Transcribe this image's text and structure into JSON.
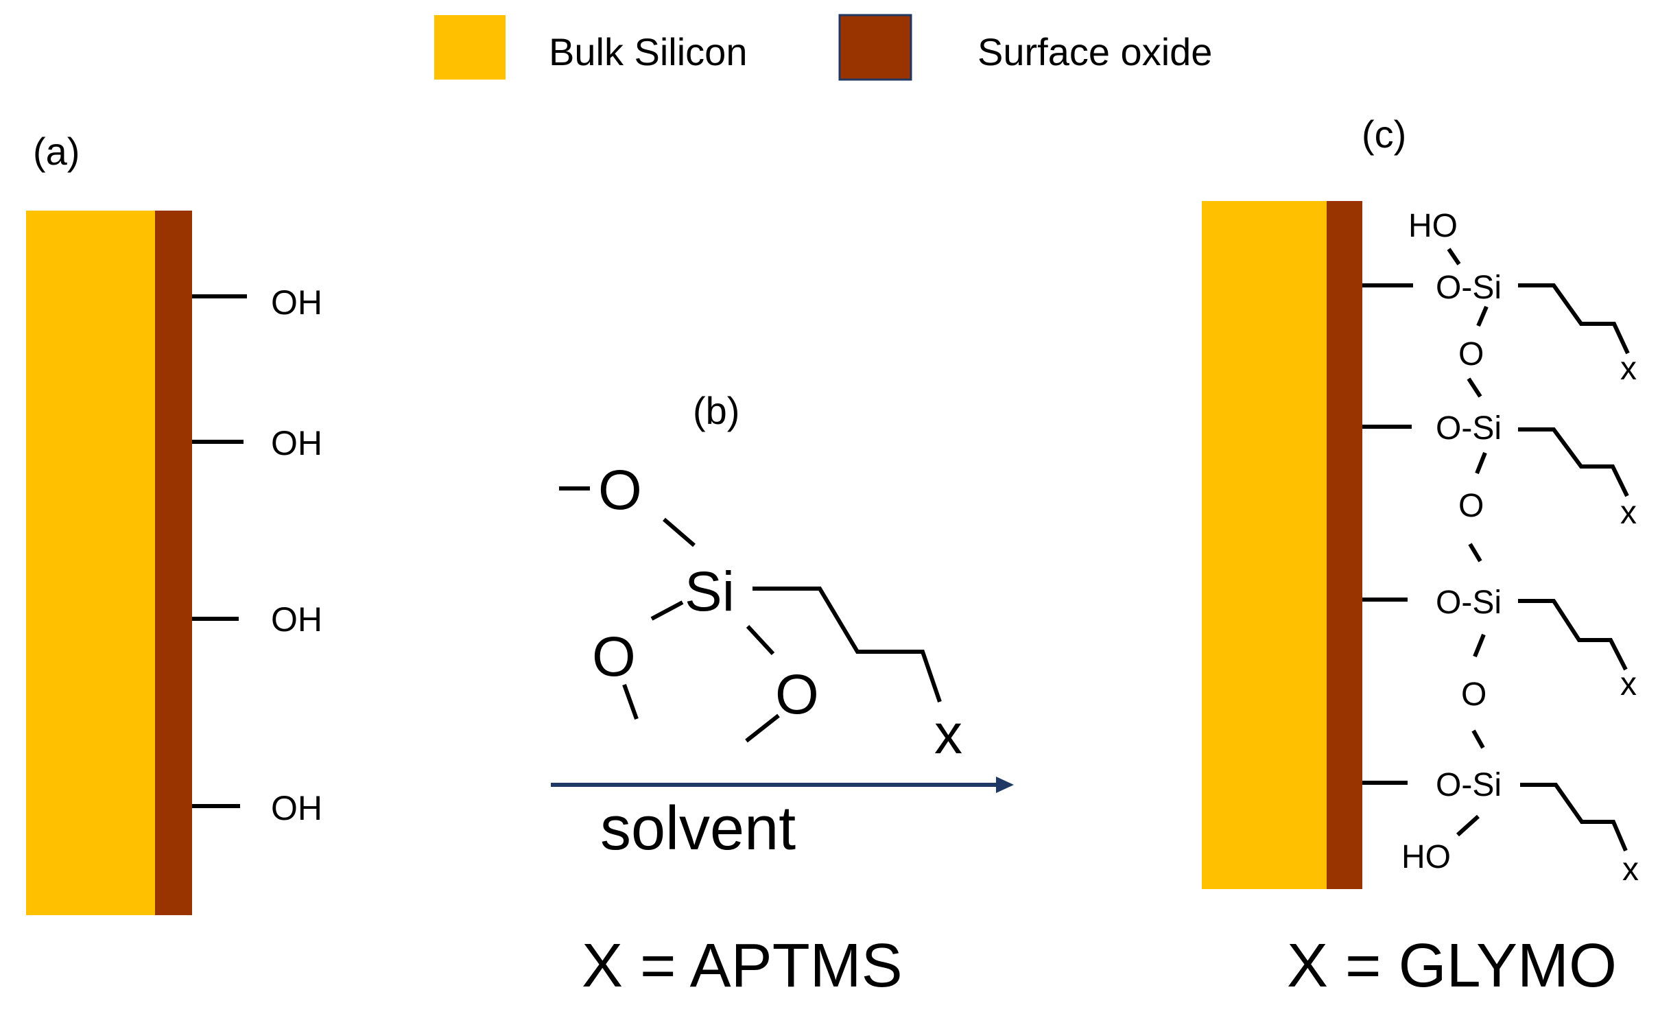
{
  "legend": {
    "items": [
      {
        "label": "Bulk Silicon",
        "color": "#FFC000"
      },
      {
        "label": "Surface oxide",
        "color": "#993300"
      }
    ]
  },
  "colors": {
    "bulk_silicon": "#FFC000",
    "surface_oxide": "#993300",
    "swatch_border": "#1F3864",
    "arrow": "#1F3864",
    "line": "#000000"
  },
  "panel_a": {
    "label": "(a)",
    "groups": [
      "OH",
      "OH",
      "OH",
      "OH"
    ]
  },
  "panel_b": {
    "label": "(b)",
    "methoxy_o": [
      "O",
      "O",
      "O"
    ],
    "silicon": "Si",
    "end_group": "x",
    "arrow_label": "solvent",
    "caption": "X = APTMS"
  },
  "panel_c": {
    "label": "(c)",
    "top_hydroxyl": "HO",
    "bottom_hydroxyl": "HO",
    "silanes": [
      "O-Si",
      "O-Si",
      "O-Si",
      "O-Si"
    ],
    "bridges": [
      "O",
      "O",
      "O"
    ],
    "end_groups": [
      "x",
      "x",
      "x",
      "x"
    ],
    "caption": "X = GLYMO"
  }
}
